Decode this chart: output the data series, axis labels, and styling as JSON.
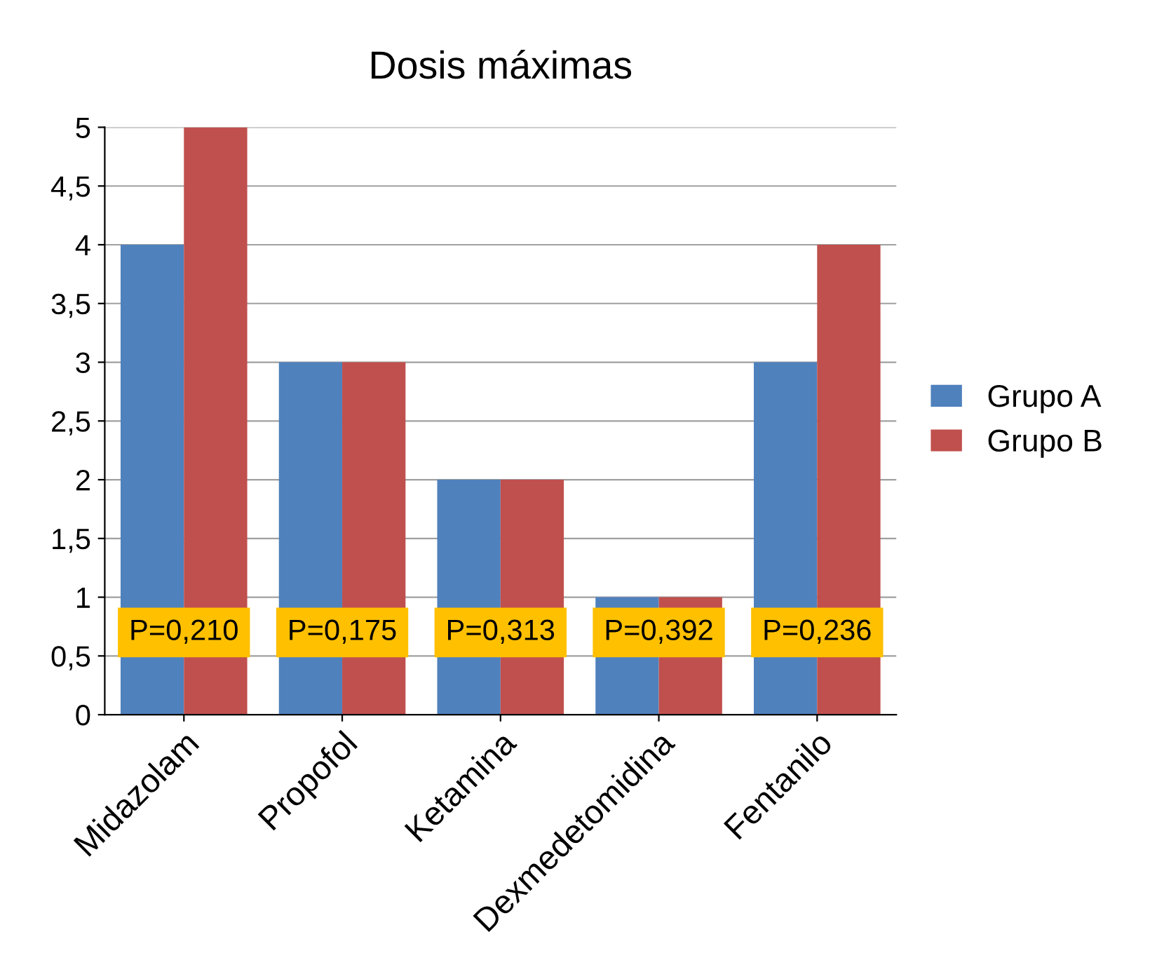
{
  "chart_data": {
    "type": "bar",
    "title": "Dosis máximas",
    "categories": [
      "Midazolam",
      "Propofol",
      "Ketamina",
      "Dexmedetomidina",
      "Fentanilo"
    ],
    "series": [
      {
        "name": "Grupo A",
        "color": "#4f81bd",
        "values": [
          4,
          3,
          2,
          1,
          3
        ]
      },
      {
        "name": "Grupo B",
        "color": "#c0504d",
        "values": [
          5,
          3,
          2,
          1,
          4
        ]
      }
    ],
    "ylim": [
      0,
      5
    ],
    "yticks": [
      0,
      {
        "value": 0.5,
        "label": "0,5"
      },
      1,
      {
        "value": 1.5,
        "label": "1,5"
      },
      2,
      {
        "value": 2.5,
        "label": "2,5"
      },
      3,
      {
        "value": 3.5,
        "label": "3,5"
      },
      4,
      {
        "value": 4.5,
        "label": "4,5"
      },
      5
    ],
    "grid": "y",
    "legend": "right",
    "annotations": [
      {
        "text": "P=0,210",
        "x": "Midazolam",
        "y": 0.7
      },
      {
        "text": "P=0,175",
        "x": "Propofol",
        "y": 0.7
      },
      {
        "text": "P=0,313",
        "x": "Ketamina",
        "y": 0.7
      },
      {
        "text": "P=0,392",
        "x": "Dexmedetomidina",
        "y": 0.7
      },
      {
        "text": "P=0,236",
        "x": "Fentanilo",
        "y": 0.7
      }
    ]
  }
}
